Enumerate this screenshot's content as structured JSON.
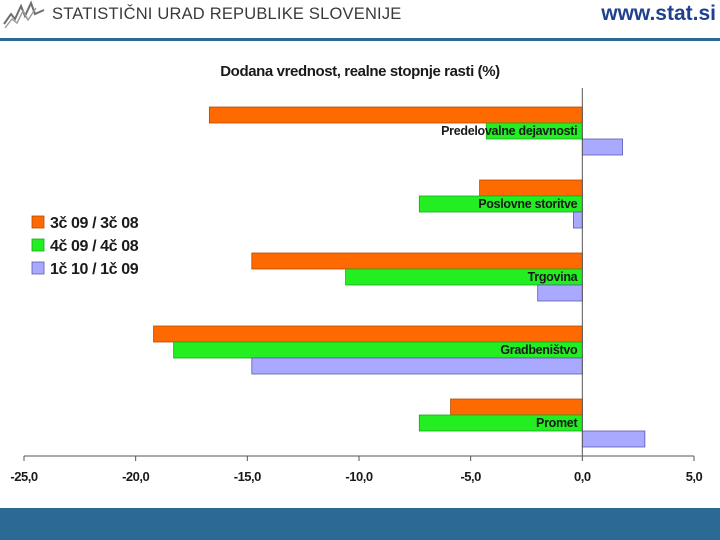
{
  "header": {
    "org_name": "STATISTIČNI URAD REPUBLIKE SLOVENIJE",
    "website": "www.stat.si",
    "logo_icon": "surs-logo-icon"
  },
  "colors": {
    "header_rule": "#2d6a93",
    "footer_bar": "#2d6a93",
    "series": [
      "#ff6a00",
      "#22ee22",
      "#a9a9ff"
    ]
  },
  "chart_data": {
    "type": "bar",
    "orientation": "horizontal",
    "title": "Dodana vrednost, realne stopnje rasti (%)",
    "categories": [
      "Predelovalne dejavnosti",
      "Poslovne storitve",
      "Trgovina",
      "Gradbeništvo",
      "Promet"
    ],
    "series": [
      {
        "name": "3č 09 / 3č 08",
        "values": [
          -16.7,
          -4.6,
          -14.8,
          -19.2,
          -5.9
        ]
      },
      {
        "name": "4č 09 / 4č 08",
        "values": [
          -4.3,
          -7.3,
          -10.6,
          -18.3,
          -7.3
        ]
      },
      {
        "name": "1č 10 / 1č 09",
        "values": [
          1.8,
          -0.4,
          -2.0,
          -14.8,
          2.8
        ]
      }
    ],
    "xlim": [
      -25.0,
      5.0
    ],
    "xticks": [
      "-25,0",
      "-20,0",
      "-15,0",
      "-10,0",
      "-5,0",
      "0,0",
      "5,0"
    ],
    "xtick_values": [
      -25,
      -20,
      -15,
      -10,
      -5,
      0,
      5
    ],
    "legend_position": "left-middle",
    "grid": false
  }
}
